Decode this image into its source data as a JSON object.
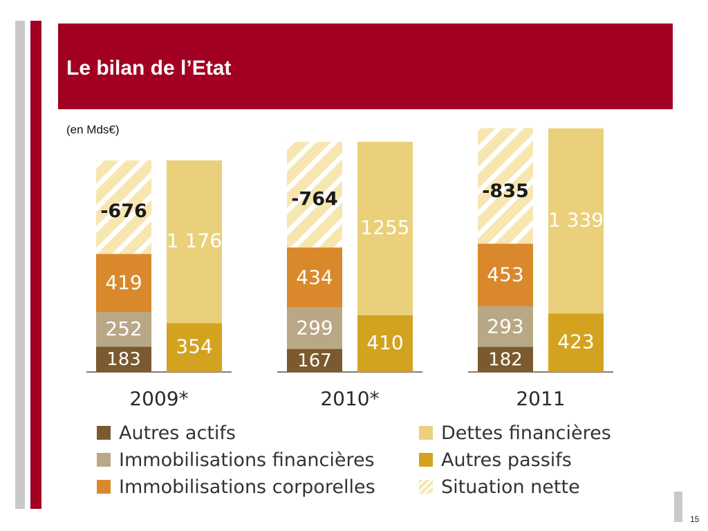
{
  "slide": {
    "title": "Le bilan de l’Etat",
    "subtitle": "(en Mds€)",
    "page_number": "15"
  },
  "colors": {
    "header_red": "#a10022",
    "autres_actifs": "#7a5a2e",
    "immobilisations_financieres": "#b9a886",
    "immobilisations_corporelles": "#d9892c",
    "dettes_financieres": "#ead07a",
    "autres_passifs": "#d3a31f",
    "situation_nette": "#f7e6b0"
  },
  "legend": [
    {
      "label": "Autres actifs",
      "color": "#7a5a2e",
      "hatched": false
    },
    {
      "label": "Immobilisations financières",
      "color": "#b9a886",
      "hatched": false
    },
    {
      "label": "Immobilisations corporelles",
      "color": "#d9892c",
      "hatched": false
    },
    {
      "label": "Dettes financières",
      "color": "#ead07a",
      "hatched": false
    },
    {
      "label": "Autres passifs",
      "color": "#d3a31f",
      "hatched": false
    },
    {
      "label": "Situation nette",
      "color": "#f7e6b0",
      "hatched": true
    }
  ],
  "chart_data": {
    "type": "bar",
    "stacked": true,
    "categories": [
      "2009*",
      "2010*",
      "2011"
    ],
    "actif": [
      {
        "name": "Autres actifs",
        "values": [
          183,
          167,
          182
        ],
        "labels": [
          "183",
          "167",
          "182"
        ]
      },
      {
        "name": "Immobilisations financières",
        "values": [
          252,
          299,
          293
        ],
        "labels": [
          "252",
          "299",
          "293"
        ]
      },
      {
        "name": "Immobilisations corporelles",
        "values": [
          419,
          434,
          453
        ],
        "labels": [
          "419",
          "434",
          "453"
        ]
      },
      {
        "name": "Situation nette",
        "values": [
          -676,
          -764,
          -835
        ],
        "labels": [
          "-676",
          "-764",
          "-835"
        ]
      }
    ],
    "passif": [
      {
        "name": "Autres passifs",
        "values": [
          354,
          410,
          423
        ],
        "labels": [
          "354",
          "410",
          "423"
        ]
      },
      {
        "name": "Dettes financières",
        "values": [
          1176,
          1255,
          1339
        ],
        "labels": [
          "1 176",
          "1255",
          "1 339"
        ]
      }
    ]
  }
}
